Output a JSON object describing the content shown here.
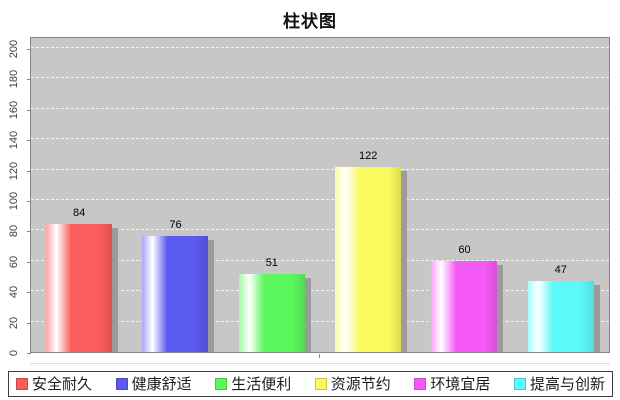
{
  "chart_data": {
    "type": "bar",
    "title": "柱状图",
    "categories": [
      "安全耐久",
      "健康舒适",
      "生活便利",
      "资源节约",
      "环境宜居",
      "提高与创新"
    ],
    "values": [
      84,
      76,
      51,
      122,
      60,
      47
    ],
    "colors": [
      "#fb5c5c",
      "#5b5bef",
      "#5cf75c",
      "#fafa5e",
      "#f65af6",
      "#5bfafa"
    ],
    "ylim": [
      0,
      200
    ],
    "yticks": [
      0,
      20,
      40,
      60,
      80,
      100,
      120,
      140,
      160,
      180,
      200
    ],
    "xlabel": "",
    "ylabel": "",
    "grid": {
      "horizontal": true,
      "style": "dashed",
      "color": "#ffffff",
      "vertical": false
    },
    "plot_background": "#c7c7c7",
    "bar_style": "glossy cylinder with white highlight and gray drop shadow",
    "value_labels_shown": true,
    "legend_position": "bottom"
  }
}
